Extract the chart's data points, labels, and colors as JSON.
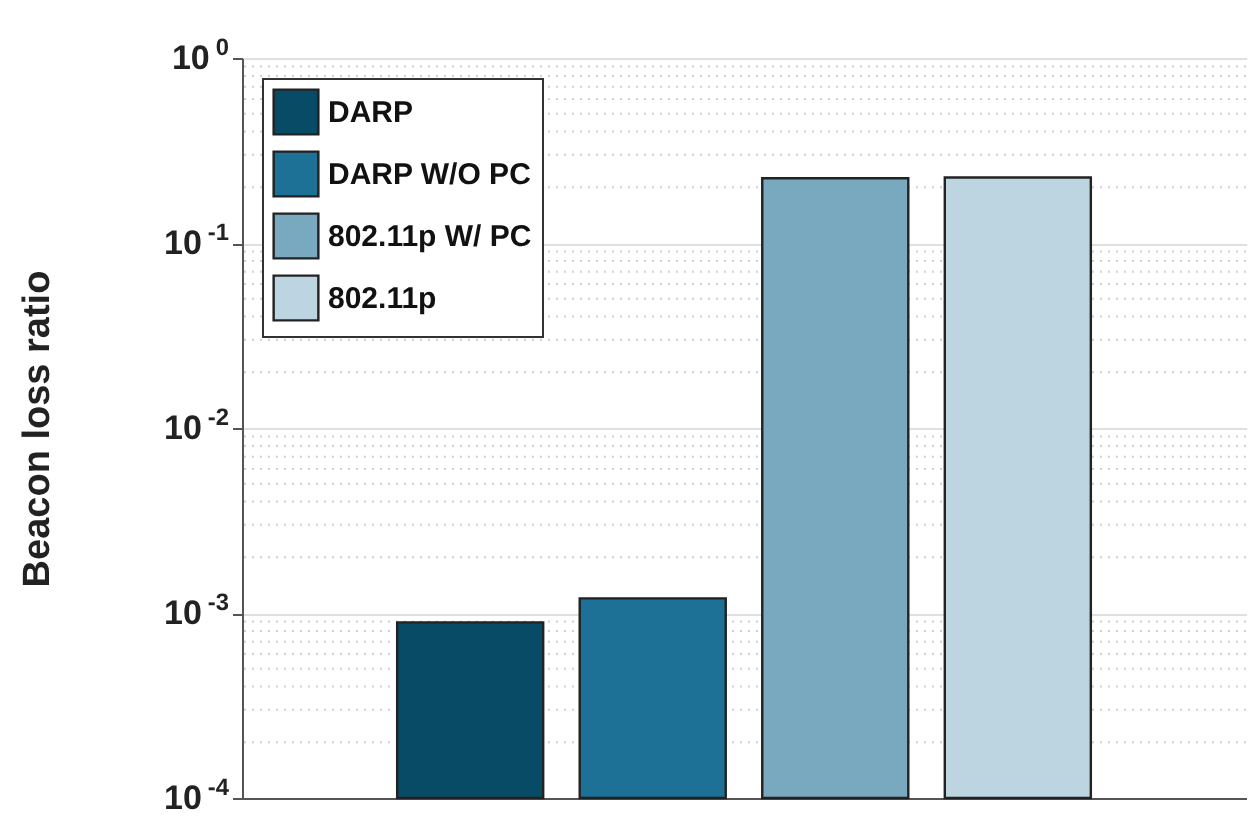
{
  "chart_data": {
    "type": "bar",
    "ylabel": "Beacon loss ratio",
    "categories": [
      null,
      null,
      null,
      null
    ],
    "series": [
      {
        "name": "DARP",
        "color": "#074b67",
        "values": [
          0.00089,
          null,
          null,
          null
        ]
      },
      {
        "name": "DARP W/O PC",
        "color": "#1d7196",
        "values": [
          null,
          0.0012,
          null,
          null
        ]
      },
      {
        "name": "802.11p W/ PC",
        "color": "#78a9bf",
        "values": [
          null,
          null,
          0.224,
          null
        ]
      },
      {
        "name": "802.11p",
        "color": "#bdd5e0",
        "values": [
          null,
          null,
          null,
          0.226
        ]
      }
    ],
    "log": true,
    "ylim": [
      0.0001,
      1
    ],
    "yticks": [
      {
        "value": 0.0001,
        "label": "10$^{-4}$"
      },
      {
        "value": 0.001,
        "label": "10$^{-3}$"
      },
      {
        "value": 0.01,
        "label": "10$^{-2}$"
      },
      {
        "value": 0.1,
        "label": "10$^{-1}$"
      },
      {
        "value": 1,
        "label": "10$^{0}$"
      }
    ],
    "grid": true,
    "legend": "top left",
    "tick_labels": "y"
  }
}
